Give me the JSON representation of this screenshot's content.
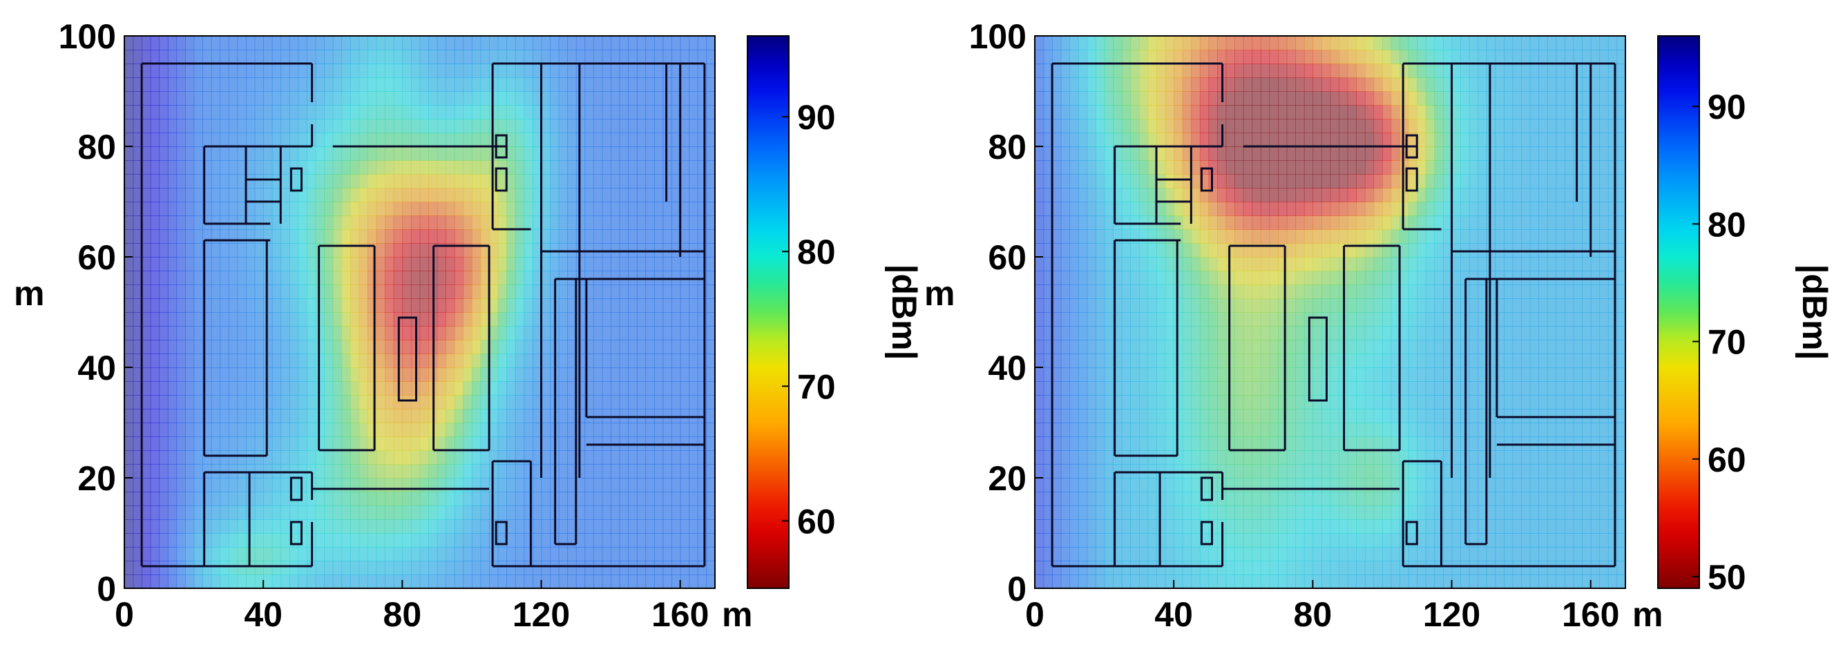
{
  "chart_data": [
    {
      "type": "heatmap",
      "panel": "left",
      "xlabel": "m",
      "ylabel": "m",
      "xlim": [
        0,
        170
      ],
      "ylim": [
        0,
        100
      ],
      "xticks": [
        0,
        40,
        80,
        120,
        160
      ],
      "yticks": [
        0,
        20,
        40,
        60,
        80,
        100
      ],
      "colorbar": {
        "label": "|dBm|",
        "range": [
          55,
          96
        ],
        "ticks": [
          60,
          70,
          80,
          90
        ]
      },
      "grid": false,
      "field": {
        "background": 88,
        "hotspots": [
          {
            "x": 82,
            "y": 45,
            "sx": 16,
            "sy": 20,
            "value": 66
          },
          {
            "x": 95,
            "y": 60,
            "sx": 14,
            "sy": 12,
            "value": 74
          },
          {
            "x": 65,
            "y": 70,
            "sx": 18,
            "sy": 15,
            "value": 80
          },
          {
            "x": 110,
            "y": 80,
            "sx": 10,
            "sy": 12,
            "value": 80
          },
          {
            "x": 60,
            "y": 15,
            "sx": 22,
            "sy": 12,
            "value": 82
          },
          {
            "x": 35,
            "y": 4,
            "sx": 12,
            "sy": 6,
            "value": 81
          },
          {
            "x": 75,
            "y": 95,
            "sx": 10,
            "sy": 8,
            "value": 84
          }
        ]
      }
    },
    {
      "type": "heatmap",
      "panel": "right",
      "xlabel": "m",
      "ylabel": "m",
      "xlim": [
        0,
        170
      ],
      "ylim": [
        0,
        100
      ],
      "xticks": [
        0,
        40,
        80,
        120,
        160
      ],
      "yticks": [
        0,
        20,
        40,
        60,
        80,
        100
      ],
      "colorbar": {
        "label": "|dBm|",
        "range": [
          49,
          96
        ],
        "ticks": [
          50,
          60,
          70,
          80,
          90
        ]
      },
      "grid": false,
      "field": {
        "background": 82,
        "hotspots": [
          {
            "x": 65,
            "y": 78,
            "sx": 18,
            "sy": 12,
            "value": 56
          },
          {
            "x": 95,
            "y": 80,
            "sx": 14,
            "sy": 10,
            "value": 59
          },
          {
            "x": 60,
            "y": 97,
            "sx": 28,
            "sy": 14,
            "value": 64
          },
          {
            "x": 62,
            "y": 40,
            "sx": 16,
            "sy": 26,
            "value": 72
          },
          {
            "x": 98,
            "y": 20,
            "sx": 10,
            "sy": 8,
            "value": 75
          },
          {
            "x": 95,
            "y": 55,
            "sx": 12,
            "sy": 12,
            "value": 77
          }
        ]
      }
    }
  ]
}
